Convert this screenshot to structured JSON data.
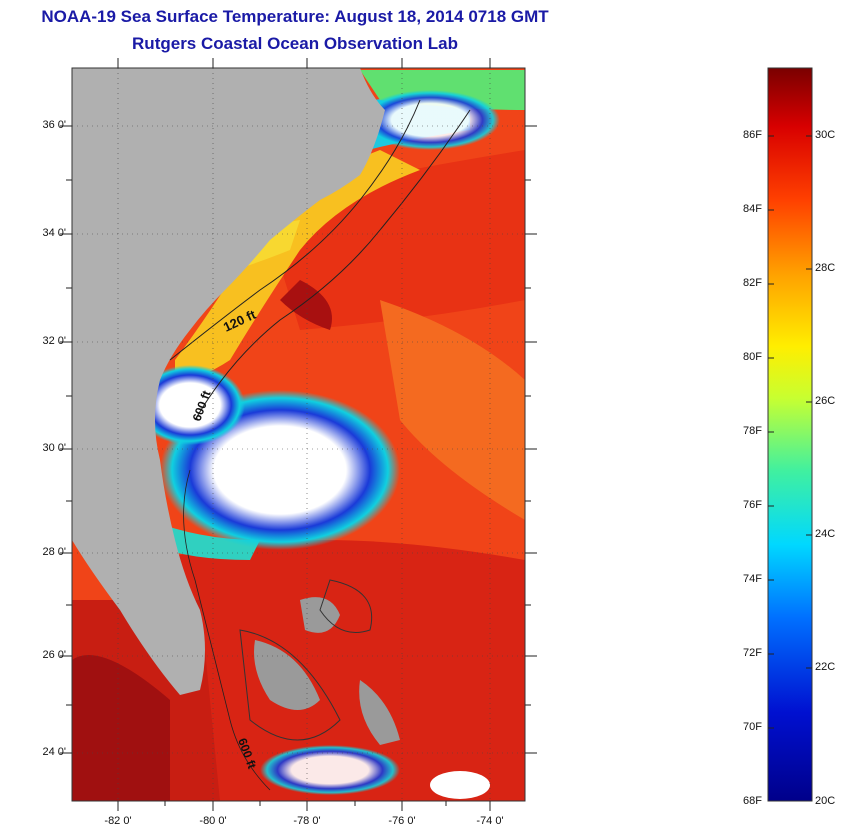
{
  "title": "NOAA-19 Sea Surface Temperature:  August 18, 2014 0718 GMT",
  "subtitle": "Rutgers Coastal Ocean Observation Lab",
  "map": {
    "lat_labels": [
      "36 0'",
      "34 0'",
      "32 0'",
      "30 0'",
      "28 0'",
      "26 0'",
      "24 0'"
    ],
    "lon_labels": [
      "-82 0'",
      "-80 0'",
      "-78 0'",
      "-76 0'",
      "-74 0'"
    ],
    "contour_labels": [
      "120 ft",
      "600 ft",
      "600 ft"
    ],
    "colors": {
      "land": "#b0b0b0",
      "cloud": "#ffffff",
      "warm": "#e82a10",
      "hot": "#b01010",
      "cool": "#1030c8"
    }
  },
  "colorbar": {
    "f_labels": [
      "86F",
      "84F",
      "82F",
      "80F",
      "78F",
      "76F",
      "74F",
      "72F",
      "70F",
      "68F"
    ],
    "c_labels": [
      "30C",
      "28C",
      "26C",
      "24C",
      "22C",
      "20C"
    ],
    "min_f": 68,
    "max_f": 88
  }
}
